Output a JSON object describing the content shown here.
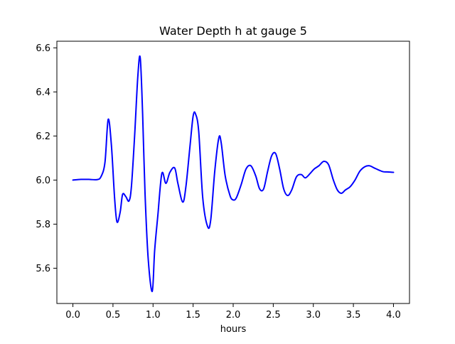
{
  "chart_data": {
    "type": "line",
    "title": "Water Depth h at gauge 5",
    "xlabel": "hours",
    "ylabel": "",
    "xlim": [
      -0.2,
      4.2
    ],
    "ylim": [
      5.44,
      6.63
    ],
    "xticks": [
      0.0,
      0.5,
      1.0,
      1.5,
      2.0,
      2.5,
      3.0,
      3.5,
      4.0
    ],
    "xtick_labels": [
      "0.0",
      "0.5",
      "1.0",
      "1.5",
      "2.0",
      "2.5",
      "3.0",
      "3.5",
      "4.0"
    ],
    "yticks": [
      5.6,
      5.8,
      6.0,
      6.2,
      6.4,
      6.6
    ],
    "ytick_labels": [
      "5.6",
      "5.8",
      "6.0",
      "6.2",
      "6.4",
      "6.6"
    ],
    "grid": false,
    "series": [
      {
        "color": "#0000ff",
        "x": [
          0.0,
          0.1,
          0.2,
          0.3,
          0.35,
          0.4,
          0.44,
          0.48,
          0.52,
          0.55,
          0.59,
          0.62,
          0.66,
          0.7,
          0.73,
          0.77,
          0.81,
          0.84,
          0.87,
          0.9,
          0.94,
          0.99,
          1.02,
          1.06,
          1.11,
          1.16,
          1.21,
          1.27,
          1.31,
          1.37,
          1.41,
          1.46,
          1.5,
          1.53,
          1.57,
          1.62,
          1.68,
          1.72,
          1.77,
          1.82,
          1.85,
          1.9,
          1.96,
          2.0,
          2.04,
          2.1,
          2.16,
          2.22,
          2.28,
          2.33,
          2.38,
          2.43,
          2.48,
          2.53,
          2.58,
          2.63,
          2.68,
          2.73,
          2.79,
          2.85,
          2.9,
          2.96,
          3.01,
          3.07,
          3.13,
          3.19,
          3.25,
          3.3,
          3.35,
          3.4,
          3.46,
          3.52,
          3.58,
          3.64,
          3.7,
          3.76,
          3.82,
          3.87,
          3.92,
          3.97,
          4.0
        ],
        "y": [
          6.0,
          6.003,
          6.003,
          6.002,
          6.015,
          6.08,
          6.275,
          6.16,
          5.92,
          5.81,
          5.855,
          5.935,
          5.925,
          5.905,
          5.97,
          6.2,
          6.47,
          6.555,
          6.3,
          5.94,
          5.64,
          5.495,
          5.68,
          5.84,
          6.03,
          5.985,
          6.035,
          6.055,
          5.985,
          5.9,
          5.97,
          6.15,
          6.29,
          6.3,
          6.22,
          5.92,
          5.79,
          5.82,
          6.04,
          6.19,
          6.17,
          6.02,
          5.93,
          5.91,
          5.92,
          5.98,
          6.05,
          6.065,
          6.02,
          5.96,
          5.96,
          6.04,
          6.11,
          6.12,
          6.05,
          5.96,
          5.93,
          5.955,
          6.015,
          6.025,
          6.01,
          6.03,
          6.05,
          6.065,
          6.085,
          6.07,
          6.0,
          5.955,
          5.94,
          5.955,
          5.97,
          6.0,
          6.04,
          6.06,
          6.065,
          6.055,
          6.045,
          6.038,
          6.037,
          6.036,
          6.035
        ]
      }
    ]
  }
}
